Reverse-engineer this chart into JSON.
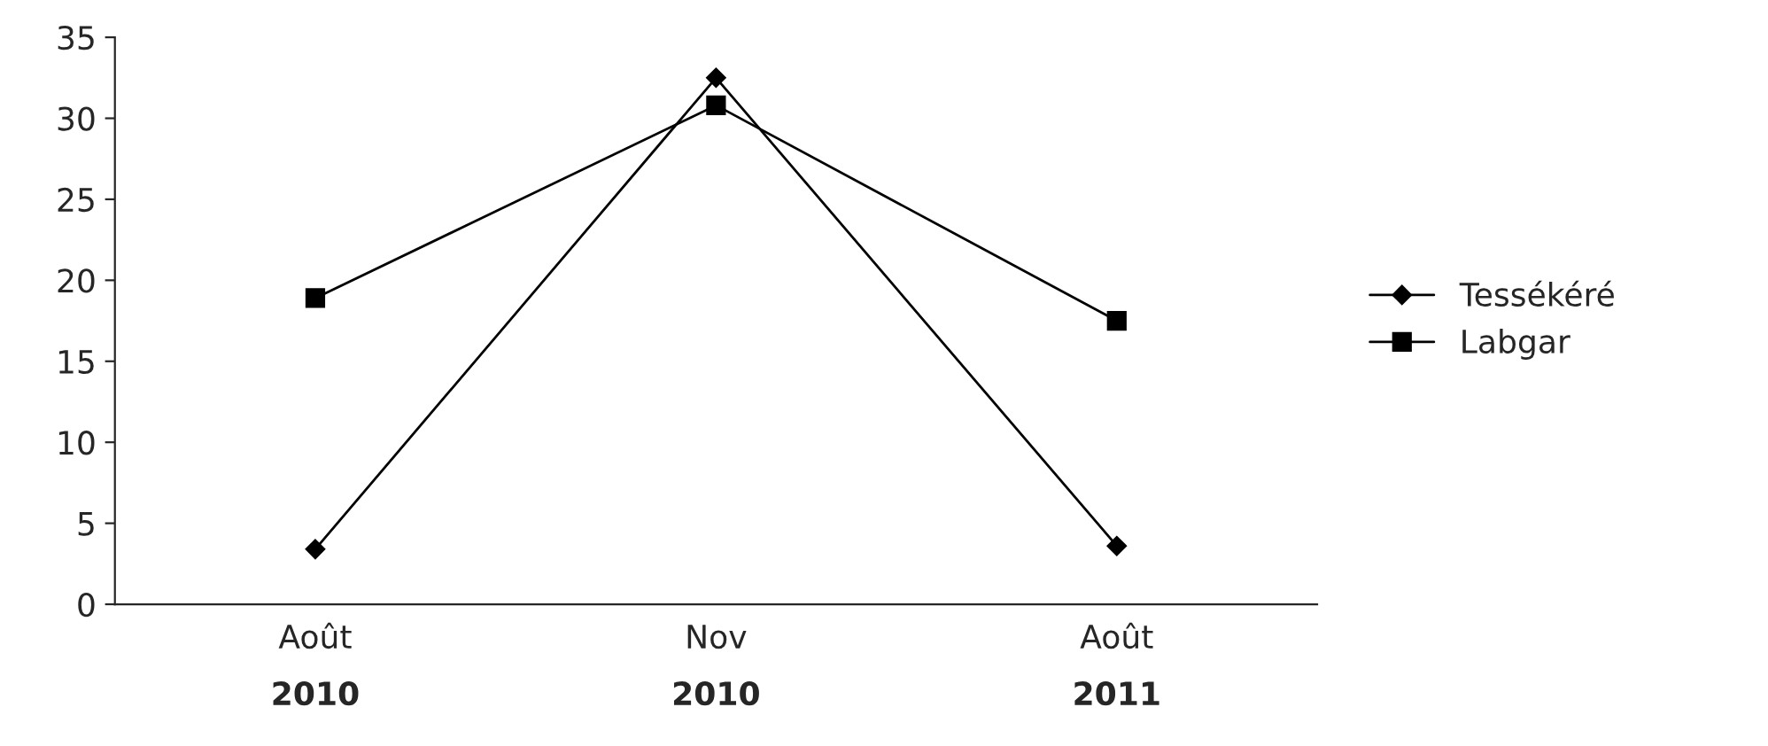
{
  "chart_data": {
    "type": "line",
    "categories": [
      "Août\n2010",
      "Nov\n2010",
      "Août\n2011"
    ],
    "series": [
      {
        "name": "Tessékéré",
        "color": "#000000",
        "marker": "diamond",
        "values": [
          3.4,
          32.5,
          3.6
        ]
      },
      {
        "name": "Labgar",
        "color": "#000000",
        "marker": "square",
        "values": [
          18.9,
          30.8,
          17.5
        ]
      }
    ],
    "ylim": [
      0,
      35
    ],
    "yticks": [
      0,
      5,
      10,
      15,
      20,
      25,
      30,
      35
    ],
    "grid": false,
    "legend": "right"
  }
}
